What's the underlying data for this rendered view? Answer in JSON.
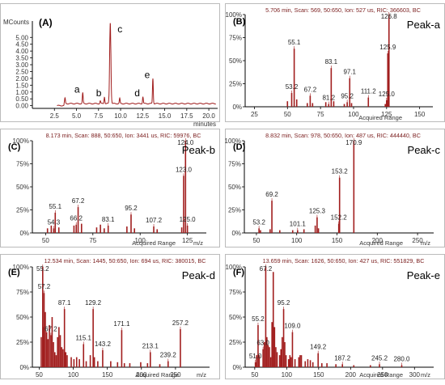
{
  "colors": {
    "trace": "#a11e1e",
    "frame": "#000000",
    "header_text": "#7a1d1d",
    "tick_text": "#333333"
  },
  "chart_data": [
    {
      "id": "A",
      "type": "line",
      "panel_label": "(A)",
      "ylabel": "MCounts",
      "xlabel": "minutes",
      "xlim": [
        0,
        21
      ],
      "ylim": [
        -0.2,
        6.2
      ],
      "x_ticks": [
        2.5,
        5.0,
        7.5,
        10.0,
        12.5,
        15.0,
        17.5,
        20.0
      ],
      "x_tick_labels": [
        "2.5",
        "5.0",
        "7.5",
        "10.0",
        "12.5",
        "15.0",
        "17.5",
        "20.0"
      ],
      "y_ticks": [
        0,
        0.5,
        1.0,
        1.5,
        2.0,
        2.5,
        3.0,
        3.5,
        4.0,
        4.5,
        5.0
      ],
      "y_tick_labels": [
        "0.00",
        "0.50",
        "1.00",
        "1.50",
        "2.00",
        "2.50",
        "3.00",
        "3.50",
        "4.00",
        "4.50",
        "5.00"
      ],
      "baseline": 0.15,
      "peaks": [
        {
          "x": 3.7,
          "y": 0.4,
          "label": ""
        },
        {
          "x": 5.71,
          "y": 0.78,
          "label": "a"
        },
        {
          "x": 7.7,
          "y": 0.2,
          "label": ""
        },
        {
          "x": 8.17,
          "y": 0.5,
          "label": "b"
        },
        {
          "x": 8.83,
          "y": 5.95,
          "label": "c"
        },
        {
          "x": 9.9,
          "y": 0.38,
          "label": ""
        },
        {
          "x": 12.53,
          "y": 0.5,
          "label": "d"
        },
        {
          "x": 13.66,
          "y": 1.85,
          "label": "e"
        }
      ]
    },
    {
      "id": "B",
      "type": "bar",
      "panel_label": "(B)",
      "peak_label": "Peak-a",
      "header": "5.706 min, Scan: 569, 50:650, Ion: 527 us, RIC: 366603, BC",
      "x_axis_label": "Acquired Range",
      "x_unit": "",
      "xlim": [
        18,
        160
      ],
      "x_ticks": [
        25,
        50,
        75,
        100,
        125,
        150
      ],
      "y_tick_labels": [
        "0%",
        "25%",
        "50%",
        "75%",
        "100%"
      ],
      "peaks": [
        {
          "mz": 50.0,
          "rel": 6
        },
        {
          "mz": 53.2,
          "rel": 15
        },
        {
          "mz": 55.1,
          "rel": 63
        },
        {
          "mz": 57.0,
          "rel": 8
        },
        {
          "mz": 65.0,
          "rel": 4
        },
        {
          "mz": 67.2,
          "rel": 12
        },
        {
          "mz": 69.0,
          "rel": 4
        },
        {
          "mz": 79.0,
          "rel": 5
        },
        {
          "mz": 81.2,
          "rel": 3
        },
        {
          "mz": 83.1,
          "rel": 42
        },
        {
          "mz": 85.0,
          "rel": 6
        },
        {
          "mz": 93.0,
          "rel": 3
        },
        {
          "mz": 95.2,
          "rel": 5
        },
        {
          "mz": 97.1,
          "rel": 31
        },
        {
          "mz": 98.5,
          "rel": 4
        },
        {
          "mz": 111.2,
          "rel": 10
        },
        {
          "mz": 124.0,
          "rel": 3
        },
        {
          "mz": 125.0,
          "rel": 7
        },
        {
          "mz": 125.9,
          "rel": 58
        },
        {
          "mz": 126.8,
          "rel": 100
        }
      ],
      "labels": [
        {
          "text": "55.1",
          "mz": 55.1,
          "rel": 63
        },
        {
          "text": "53.2",
          "mz": 53.2,
          "rel": 15
        },
        {
          "text": "67.2",
          "mz": 67.2,
          "rel": 12
        },
        {
          "text": "81.2",
          "mz": 81.2,
          "rel": 3
        },
        {
          "text": "83.1",
          "mz": 83.1,
          "rel": 42
        },
        {
          "text": "95.2",
          "mz": 95.2,
          "rel": 5
        },
        {
          "text": "97.1",
          "mz": 97.1,
          "rel": 31
        },
        {
          "text": "111.2",
          "mz": 111.2,
          "rel": 10
        },
        {
          "text": "125.0",
          "mz": 125.0,
          "rel": 7
        },
        {
          "text": "125.9",
          "mz": 125.9,
          "rel": 58
        },
        {
          "text": "126.8",
          "mz": 126.8,
          "rel": 100
        }
      ]
    },
    {
      "id": "C",
      "type": "bar",
      "panel_label": "(C)",
      "peak_label": "Peak-b",
      "header": "8.173 min, Scan: 888, 50:650, Ion: 3441 us, RIC: 59976, BC",
      "x_axis_label": "Acquired Range",
      "x_unit": "m/z",
      "xlim": [
        43,
        135
      ],
      "x_ticks": [
        50,
        75,
        100,
        125
      ],
      "y_tick_labels": [
        "0%",
        "25%",
        "50%",
        "75%",
        "100%"
      ],
      "peaks": [
        {
          "mz": 51.0,
          "rel": 5
        },
        {
          "mz": 53.0,
          "rel": 8
        },
        {
          "mz": 54.3,
          "rel": 5
        },
        {
          "mz": 55.1,
          "rel": 22
        },
        {
          "mz": 57.0,
          "rel": 6
        },
        {
          "mz": 65.0,
          "rel": 8
        },
        {
          "mz": 66.2,
          "rel": 9
        },
        {
          "mz": 67.2,
          "rel": 28
        },
        {
          "mz": 69.0,
          "rel": 10
        },
        {
          "mz": 77.0,
          "rel": 6
        },
        {
          "mz": 79.0,
          "rel": 9
        },
        {
          "mz": 81.0,
          "rel": 5
        },
        {
          "mz": 83.1,
          "rel": 8
        },
        {
          "mz": 93.0,
          "rel": 7
        },
        {
          "mz": 95.2,
          "rel": 20
        },
        {
          "mz": 97.0,
          "rel": 5
        },
        {
          "mz": 107.2,
          "rel": 7
        },
        {
          "mz": 109.0,
          "rel": 4
        },
        {
          "mz": 122.0,
          "rel": 6
        },
        {
          "mz": 123.0,
          "rel": 62
        },
        {
          "mz": 124.0,
          "rel": 100
        },
        {
          "mz": 125.0,
          "rel": 8
        }
      ],
      "labels": [
        {
          "text": "55.1",
          "mz": 55.1,
          "rel": 22
        },
        {
          "text": "54.3",
          "mz": 54.3,
          "rel": 5
        },
        {
          "text": "67.2",
          "mz": 67.2,
          "rel": 28
        },
        {
          "text": "66.2",
          "mz": 66.2,
          "rel": 9
        },
        {
          "text": "83.1",
          "mz": 83.1,
          "rel": 8
        },
        {
          "text": "95.2",
          "mz": 95.2,
          "rel": 20
        },
        {
          "text": "107.2",
          "mz": 107.2,
          "rel": 7
        },
        {
          "text": "123.0",
          "mz": 123.0,
          "rel": 62
        },
        {
          "text": "124.0",
          "mz": 124.0,
          "rel": 100
        },
        {
          "text": "125.0",
          "mz": 125.0,
          "rel": 8
        }
      ]
    },
    {
      "id": "D",
      "type": "bar",
      "panel_label": "(D)",
      "peak_label": "Peak-c",
      "header": "8.832 min, Scan: 978, 50:650, Ion: 487 us, RIC: 444440, BC",
      "x_axis_label": "Acquired Range",
      "x_unit": "m/z",
      "xlim": [
        35,
        270
      ],
      "x_ticks": [
        50,
        100,
        150,
        200,
        250
      ],
      "y_tick_labels": [
        "0%",
        "25%",
        "50%",
        "75%",
        "100%"
      ],
      "peaks": [
        {
          "mz": 53.2,
          "rel": 5
        },
        {
          "mz": 55.0,
          "rel": 3
        },
        {
          "mz": 67.0,
          "rel": 4
        },
        {
          "mz": 69.2,
          "rel": 35
        },
        {
          "mz": 79.0,
          "rel": 3
        },
        {
          "mz": 95.0,
          "rel": 3
        },
        {
          "mz": 101.1,
          "rel": 3
        },
        {
          "mz": 109.0,
          "rel": 4
        },
        {
          "mz": 123.0,
          "rel": 8
        },
        {
          "mz": 125.3,
          "rel": 17
        },
        {
          "mz": 127.0,
          "rel": 5
        },
        {
          "mz": 152.2,
          "rel": 10
        },
        {
          "mz": 153.2,
          "rel": 60
        },
        {
          "mz": 170.9,
          "rel": 100
        }
      ],
      "labels": [
        {
          "text": "53.2",
          "mz": 53.2,
          "rel": 5
        },
        {
          "text": "69.2",
          "mz": 69.2,
          "rel": 35
        },
        {
          "text": "101.1",
          "mz": 101.1,
          "rel": 3
        },
        {
          "text": "125.3",
          "mz": 125.3,
          "rel": 17
        },
        {
          "text": "153.2",
          "mz": 153.2,
          "rel": 60
        },
        {
          "text": "152.2",
          "mz": 152.2,
          "rel": 10
        },
        {
          "text": "170.9",
          "mz": 170.9,
          "rel": 100
        }
      ]
    },
    {
      "id": "E",
      "type": "bar",
      "panel_label": "(E)",
      "peak_label": "Peak-d",
      "header": "12.534 min, Scan: 1445, 50:650, Ion: 694 us, RIC: 380015, BC",
      "x_axis_label": "Acquired Range",
      "x_unit": "m/z",
      "xlim": [
        40,
        300
      ],
      "x_ticks": [
        50,
        100,
        150,
        200,
        250
      ],
      "y_tick_labels": [
        "0%",
        "25%",
        "50%",
        "75%",
        "100%"
      ],
      "peaks": [
        {
          "mz": 53.0,
          "rel": 30
        },
        {
          "mz": 55.2,
          "rel": 100
        },
        {
          "mz": 56.0,
          "rel": 40
        },
        {
          "mz": 57.2,
          "rel": 74
        },
        {
          "mz": 59.0,
          "rel": 55
        },
        {
          "mz": 61.0,
          "rel": 35
        },
        {
          "mz": 63.0,
          "rel": 28
        },
        {
          "mz": 65.0,
          "rel": 42
        },
        {
          "mz": 67.2,
          "rel": 32
        },
        {
          "mz": 69.0,
          "rel": 50
        },
        {
          "mz": 71.0,
          "rel": 25
        },
        {
          "mz": 73.0,
          "rel": 15
        },
        {
          "mz": 75.0,
          "rel": 12
        },
        {
          "mz": 77.0,
          "rel": 30
        },
        {
          "mz": 79.0,
          "rel": 40
        },
        {
          "mz": 81.0,
          "rel": 32
        },
        {
          "mz": 83.0,
          "rel": 20
        },
        {
          "mz": 85.0,
          "rel": 18
        },
        {
          "mz": 87.1,
          "rel": 58
        },
        {
          "mz": 89.0,
          "rel": 15
        },
        {
          "mz": 91.0,
          "rel": 12
        },
        {
          "mz": 97.0,
          "rel": 10
        },
        {
          "mz": 101.0,
          "rel": 8
        },
        {
          "mz": 105.0,
          "rel": 10
        },
        {
          "mz": 109.0,
          "rel": 8
        },
        {
          "mz": 115.1,
          "rel": 23
        },
        {
          "mz": 119.0,
          "rel": 6
        },
        {
          "mz": 125.0,
          "rel": 12
        },
        {
          "mz": 129.2,
          "rel": 58
        },
        {
          "mz": 131.0,
          "rel": 10
        },
        {
          "mz": 136.0,
          "rel": 6
        },
        {
          "mz": 143.2,
          "rel": 17
        },
        {
          "mz": 155.0,
          "rel": 6
        },
        {
          "mz": 165.0,
          "rel": 5
        },
        {
          "mz": 171.1,
          "rel": 37
        },
        {
          "mz": 175.0,
          "rel": 4
        },
        {
          "mz": 183.0,
          "rel": 4
        },
        {
          "mz": 199.0,
          "rel": 5
        },
        {
          "mz": 209.0,
          "rel": 4
        },
        {
          "mz": 213.1,
          "rel": 15
        },
        {
          "mz": 227.0,
          "rel": 3
        },
        {
          "mz": 239.2,
          "rel": 6
        },
        {
          "mz": 257.2,
          "rel": 38
        }
      ],
      "labels": [
        {
          "text": "55.2",
          "mz": 55.2,
          "rel": 100
        },
        {
          "text": "57.2",
          "mz": 57.2,
          "rel": 74
        },
        {
          "text": "67.2",
          "mz": 67.2,
          "rel": 32
        },
        {
          "text": "87.1",
          "mz": 87.1,
          "rel": 58
        },
        {
          "text": "115.1",
          "mz": 115.1,
          "rel": 23
        },
        {
          "text": "129.2",
          "mz": 129.2,
          "rel": 58
        },
        {
          "text": "143.2",
          "mz": 143.2,
          "rel": 17
        },
        {
          "text": "171.1",
          "mz": 171.1,
          "rel": 37
        },
        {
          "text": "213.1",
          "mz": 213.1,
          "rel": 15
        },
        {
          "text": "239.2",
          "mz": 239.2,
          "rel": 6
        },
        {
          "text": "257.2",
          "mz": 257.2,
          "rel": 38
        }
      ]
    },
    {
      "id": "F",
      "type": "bar",
      "panel_label": "(F)",
      "peak_label": "Peak-e",
      "header": "13.659 min, Scan: 1626, 50:650, Ion: 427 us, RIC: 551829, BC",
      "x_axis_label": "Acquired Range",
      "x_unit": "m/z",
      "xlim": [
        35,
        330
      ],
      "x_ticks": [
        50,
        100,
        150,
        200,
        250,
        300
      ],
      "y_tick_labels": [
        "0%",
        "25%",
        "50%",
        "75%",
        "100%"
      ],
      "peaks": [
        {
          "mz": 51.0,
          "rel": 5
        },
        {
          "mz": 53.0,
          "rel": 12
        },
        {
          "mz": 55.2,
          "rel": 42
        },
        {
          "mz": 57.0,
          "rel": 12
        },
        {
          "mz": 63.0,
          "rel": 18
        },
        {
          "mz": 65.0,
          "rel": 25
        },
        {
          "mz": 67.2,
          "rel": 100
        },
        {
          "mz": 69.0,
          "rel": 30
        },
        {
          "mz": 71.0,
          "rel": 22
        },
        {
          "mz": 73.0,
          "rel": 20
        },
        {
          "mz": 75.0,
          "rel": 10
        },
        {
          "mz": 77.0,
          "rel": 45
        },
        {
          "mz": 79.0,
          "rel": 95
        },
        {
          "mz": 81.0,
          "rel": 40
        },
        {
          "mz": 83.0,
          "rel": 20
        },
        {
          "mz": 85.0,
          "rel": 15
        },
        {
          "mz": 89.0,
          "rel": 12
        },
        {
          "mz": 91.0,
          "rel": 18
        },
        {
          "mz": 93.0,
          "rel": 30
        },
        {
          "mz": 95.2,
          "rel": 58
        },
        {
          "mz": 97.0,
          "rel": 25
        },
        {
          "mz": 99.0,
          "rel": 12
        },
        {
          "mz": 103.0,
          "rel": 8
        },
        {
          "mz": 105.0,
          "rel": 12
        },
        {
          "mz": 107.0,
          "rel": 10
        },
        {
          "mz": 109.0,
          "rel": 35
        },
        {
          "mz": 113.0,
          "rel": 8
        },
        {
          "mz": 119.0,
          "rel": 10
        },
        {
          "mz": 121.0,
          "rel": 12
        },
        {
          "mz": 123.0,
          "rel": 12
        },
        {
          "mz": 129.0,
          "rel": 6
        },
        {
          "mz": 133.0,
          "rel": 8
        },
        {
          "mz": 137.0,
          "rel": 7
        },
        {
          "mz": 141.0,
          "rel": 5
        },
        {
          "mz": 149.2,
          "rel": 14
        },
        {
          "mz": 155.0,
          "rel": 4
        },
        {
          "mz": 163.0,
          "rel": 4
        },
        {
          "mz": 177.0,
          "rel": 3
        },
        {
          "mz": 187.2,
          "rel": 3
        },
        {
          "mz": 205.0,
          "rel": 2
        },
        {
          "mz": 231.0,
          "rel": 2
        },
        {
          "mz": 245.2,
          "rel": 3
        },
        {
          "mz": 280.0,
          "rel": 2
        }
      ],
      "labels": [
        {
          "text": "67.2",
          "mz": 67.2,
          "rel": 100
        },
        {
          "text": "55.2",
          "mz": 55.2,
          "rel": 42
        },
        {
          "text": "95.2",
          "mz": 95.2,
          "rel": 58
        },
        {
          "text": "63.0",
          "mz": 63.0,
          "rel": 18
        },
        {
          "text": "109.0",
          "mz": 109.0,
          "rel": 35
        },
        {
          "text": "51.0",
          "mz": 51.0,
          "rel": 5
        },
        {
          "text": "149.2",
          "mz": 149.2,
          "rel": 14
        },
        {
          "text": "187.2",
          "mz": 187.2,
          "rel": 3
        },
        {
          "text": "245.2",
          "mz": 245.2,
          "rel": 3
        },
        {
          "text": "280.0",
          "mz": 280.0,
          "rel": 2
        }
      ]
    }
  ]
}
